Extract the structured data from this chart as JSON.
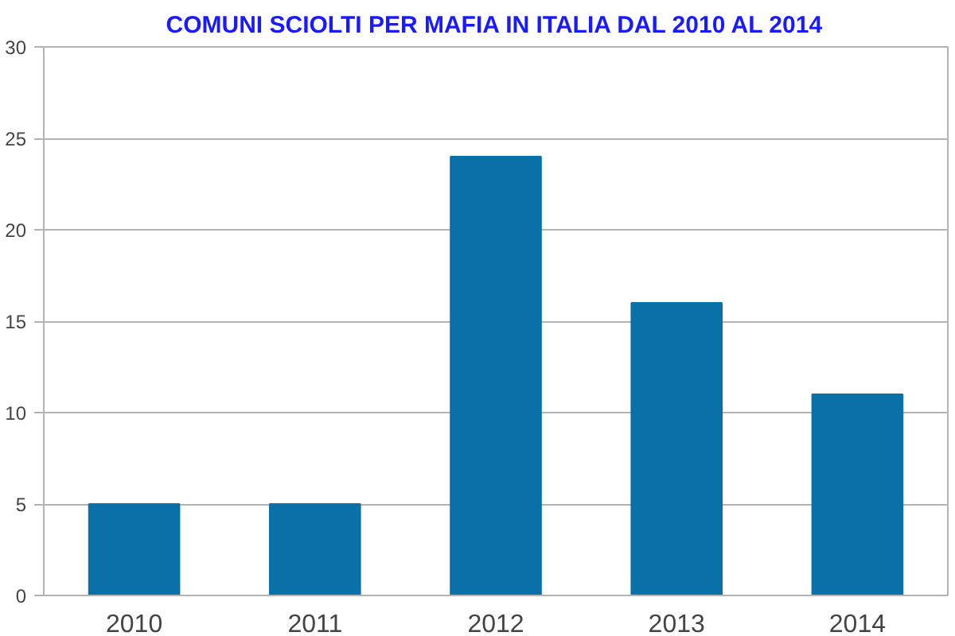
{
  "chart_data": {
    "type": "bar",
    "title": "COMUNI SCIOLTI PER MAFIA IN ITALIA DAL 2010 AL 2014",
    "categories": [
      "2010",
      "2011",
      "2012",
      "2013",
      "2014"
    ],
    "values": [
      5,
      5,
      24,
      16,
      11
    ],
    "color": "#0a70a8",
    "ylim": [
      0,
      30
    ],
    "yticks": [
      0,
      5,
      10,
      15,
      20,
      25,
      30
    ],
    "grid": "y"
  }
}
